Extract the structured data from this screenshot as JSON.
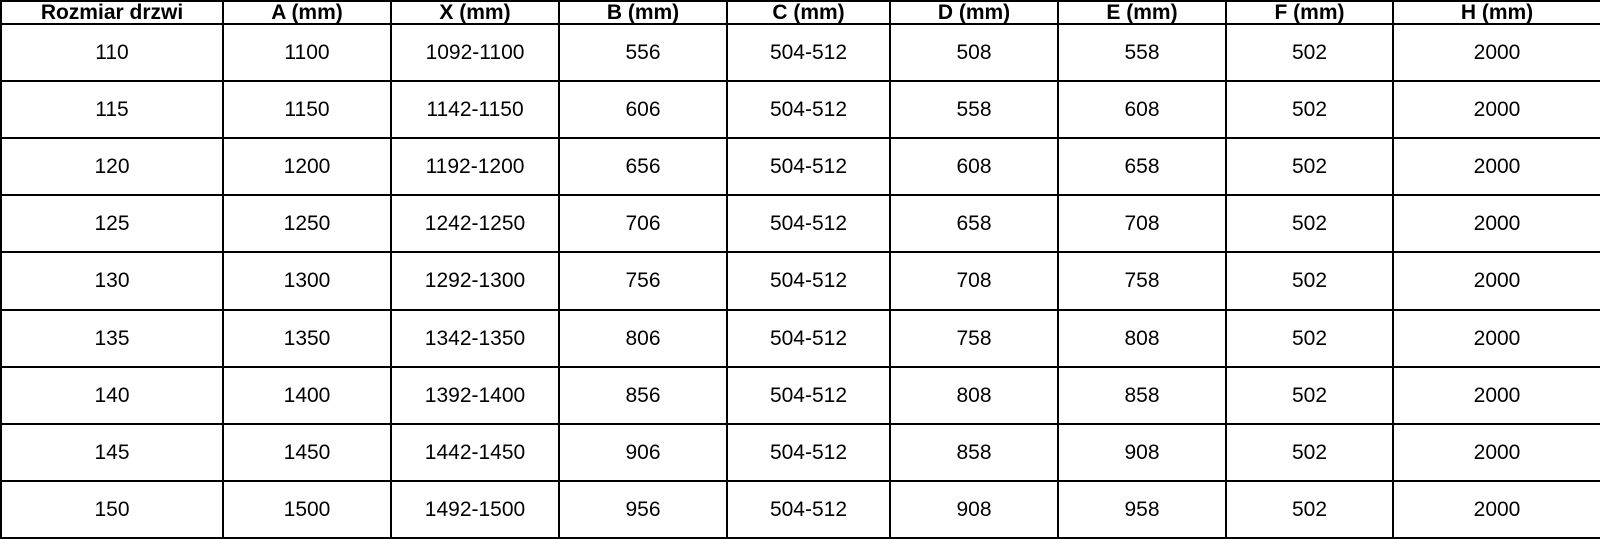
{
  "chart_data": {
    "type": "table",
    "title": "",
    "columns": [
      "Rozmiar drzwi",
      "A (mm)",
      "X (mm)",
      "B (mm)",
      "C (mm)",
      "D (mm)",
      "E (mm)",
      "F (mm)",
      "H (mm)"
    ],
    "rows": [
      [
        "110",
        "1100",
        "1092-1100",
        "556",
        "504-512",
        "508",
        "558",
        "502",
        "2000"
      ],
      [
        "115",
        "1150",
        "1142-1150",
        "606",
        "504-512",
        "558",
        "608",
        "502",
        "2000"
      ],
      [
        "120",
        "1200",
        "1192-1200",
        "656",
        "504-512",
        "608",
        "658",
        "502",
        "2000"
      ],
      [
        "125",
        "1250",
        "1242-1250",
        "706",
        "504-512",
        "658",
        "708",
        "502",
        "2000"
      ],
      [
        "130",
        "1300",
        "1292-1300",
        "756",
        "504-512",
        "708",
        "758",
        "502",
        "2000"
      ],
      [
        "135",
        "1350",
        "1342-1350",
        "806",
        "504-512",
        "758",
        "808",
        "502",
        "2000"
      ],
      [
        "140",
        "1400",
        "1392-1400",
        "856",
        "504-512",
        "808",
        "858",
        "502",
        "2000"
      ],
      [
        "145",
        "1450",
        "1442-1450",
        "906",
        "504-512",
        "858",
        "908",
        "502",
        "2000"
      ],
      [
        "150",
        "1500",
        "1492-1500",
        "956",
        "504-512",
        "908",
        "958",
        "502",
        "2000"
      ]
    ],
    "layout": {
      "grid": true,
      "border_color": "#000000",
      "text_color": "#000000",
      "background_color": "#ffffff",
      "header_bold": true
    }
  }
}
